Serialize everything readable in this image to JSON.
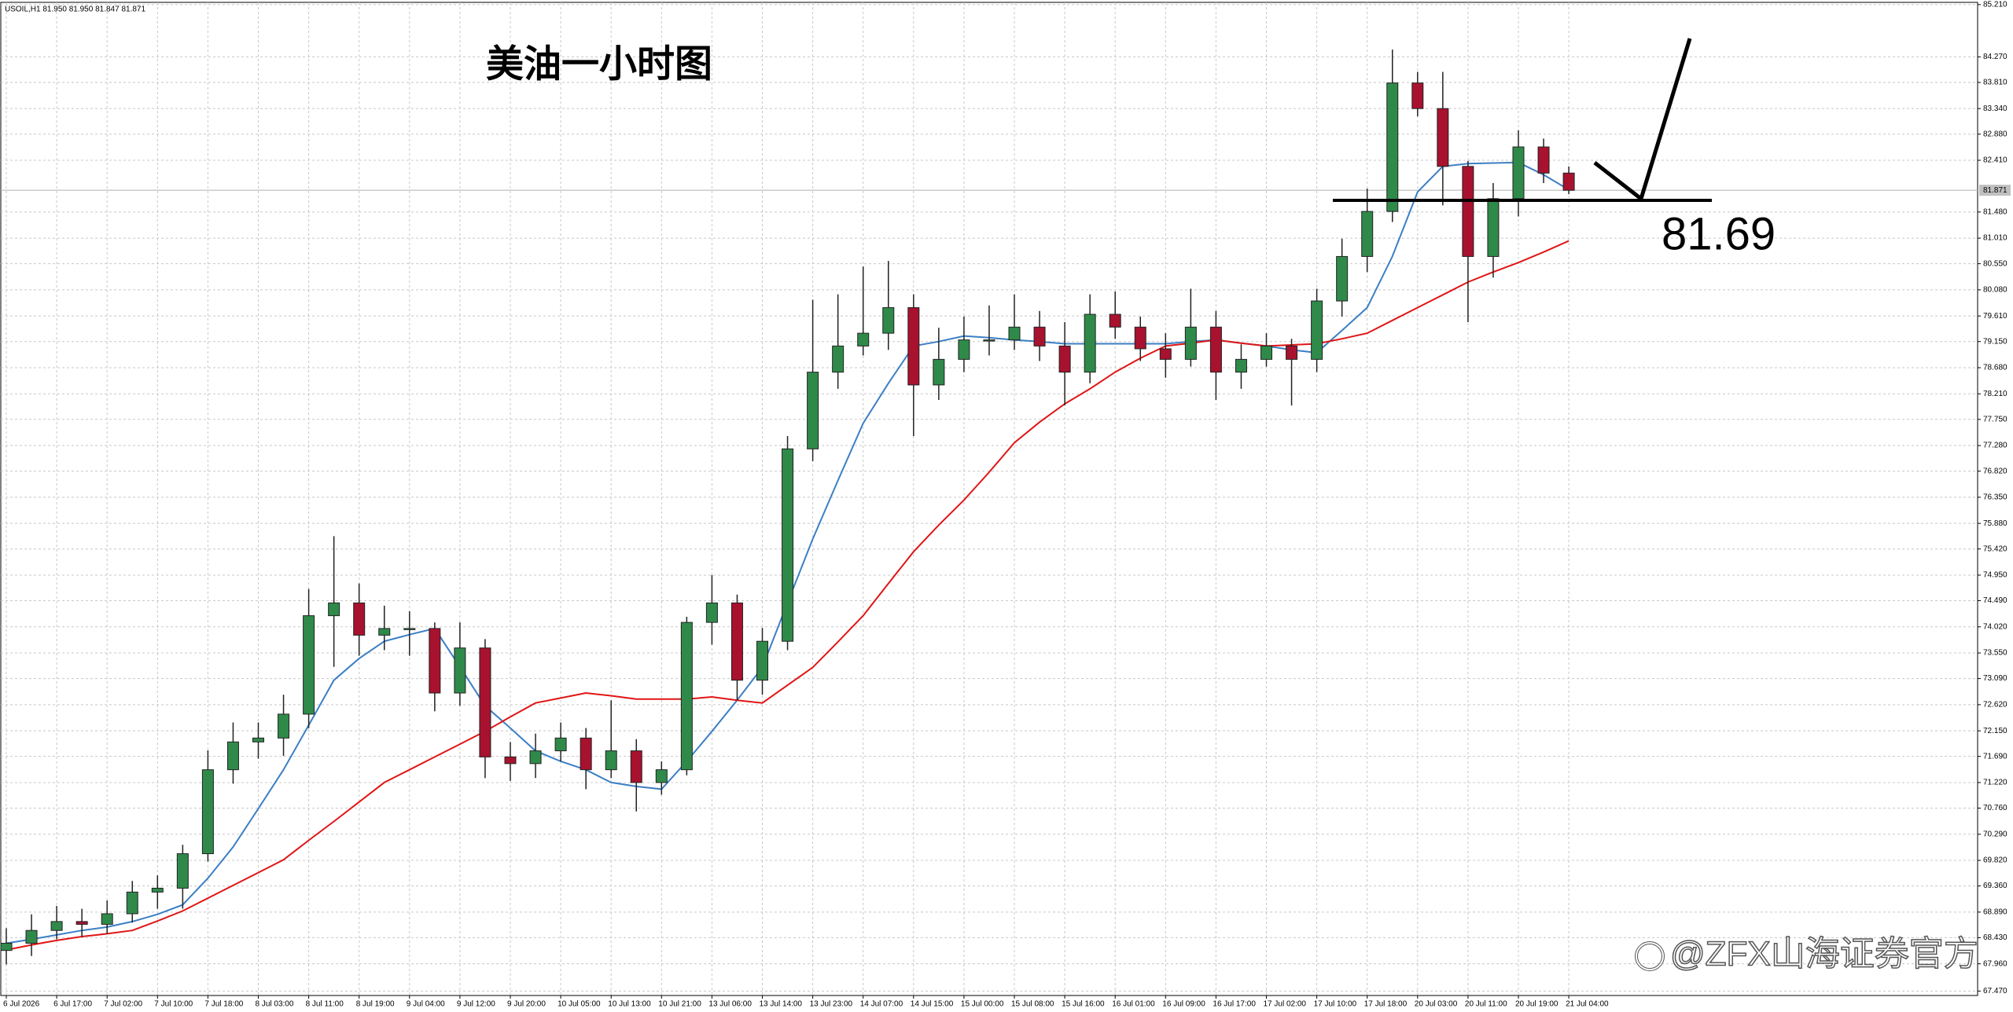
{
  "chart_data": {
    "type": "candlestick",
    "header": "USOIL,H1  81.950 81.950 81.847 81.871",
    "title": "美油一小时图",
    "level": 81.69,
    "last_price": 81.871,
    "watermark": "@ZFX山海证券官方",
    "bull_color": "#2f8a4a",
    "bear_color": "#a8122f",
    "grid": true,
    "categories": [
      "6 Jul 2026",
      null,
      "6 Jul 17:00",
      null,
      "7 Jul 02:00",
      null,
      "7 Jul 10:00",
      null,
      "7 Jul 18:00",
      null,
      "8 Jul 03:00",
      null,
      "8 Jul 11:00",
      null,
      "8 Jul 19:00",
      null,
      "9 Jul 04:00",
      null,
      "9 Jul 12:00",
      null,
      "9 Jul 20:00",
      null,
      "10 Jul 05:00",
      null,
      "10 Jul 13:00",
      null,
      "10 Jul 21:00",
      null,
      "13 Jul 06:00",
      null,
      "13 Jul 14:00",
      null,
      "13 Jul 23:00",
      null,
      "14 Jul 07:00",
      null,
      "14 Jul 15:00",
      null,
      "15 Jul 00:00",
      null,
      "15 Jul 08:00",
      null,
      "15 Jul 16:00",
      null,
      "16 Jul 01:00",
      null,
      "16 Jul 09:00",
      null,
      "16 Jul 17:00",
      null,
      "17 Jul 02:00",
      null,
      "17 Jul 10:00",
      null,
      "17 Jul 18:00",
      null,
      "20 Jul 03:00",
      null,
      "20 Jul 11:00",
      null,
      "20 Jul 19:00",
      null,
      "21 Jul 04:00"
    ],
    "ohlc": [
      [
        68.2,
        68.6,
        67.95,
        68.33
      ],
      [
        68.33,
        68.85,
        68.1,
        68.56
      ],
      [
        68.56,
        69.0,
        68.4,
        68.72
      ],
      [
        68.72,
        68.95,
        68.45,
        68.67
      ],
      [
        68.67,
        69.1,
        68.5,
        68.86
      ],
      [
        68.86,
        69.45,
        68.7,
        69.25
      ],
      [
        69.25,
        69.55,
        68.95,
        69.32
      ],
      [
        69.32,
        70.1,
        68.95,
        69.94
      ],
      [
        69.94,
        71.8,
        69.8,
        71.45
      ],
      [
        71.45,
        72.3,
        71.2,
        71.95
      ],
      [
        71.95,
        72.3,
        71.65,
        72.02
      ],
      [
        72.02,
        72.8,
        71.7,
        72.45
      ],
      [
        72.45,
        74.7,
        72.2,
        74.22
      ],
      [
        74.22,
        75.65,
        73.3,
        74.45
      ],
      [
        74.45,
        74.8,
        73.5,
        73.87
      ],
      [
        73.87,
        74.4,
        73.6,
        73.99
      ],
      [
        73.99,
        74.3,
        73.5,
        73.99
      ],
      [
        73.99,
        74.1,
        72.5,
        72.83
      ],
      [
        72.83,
        74.1,
        72.6,
        73.64
      ],
      [
        73.64,
        73.8,
        71.3,
        71.68
      ],
      [
        71.68,
        71.95,
        71.25,
        71.56
      ],
      [
        71.56,
        72.1,
        71.3,
        71.79
      ],
      [
        71.79,
        72.3,
        71.6,
        72.02
      ],
      [
        72.02,
        72.2,
        71.1,
        71.45
      ],
      [
        71.45,
        72.7,
        71.3,
        71.79
      ],
      [
        71.79,
        72.0,
        70.7,
        71.22
      ],
      [
        71.22,
        71.6,
        71.0,
        71.45
      ],
      [
        71.45,
        74.2,
        71.35,
        74.1
      ],
      [
        74.1,
        74.95,
        73.7,
        74.45
      ],
      [
        74.45,
        74.6,
        72.7,
        73.06
      ],
      [
        73.06,
        74.0,
        72.8,
        73.76
      ],
      [
        73.76,
        77.45,
        73.6,
        77.22
      ],
      [
        77.22,
        79.9,
        77.0,
        78.6
      ],
      [
        78.6,
        80.0,
        78.3,
        79.07
      ],
      [
        79.07,
        80.5,
        78.9,
        79.3
      ],
      [
        79.3,
        80.6,
        79.0,
        79.76
      ],
      [
        79.76,
        80.0,
        77.45,
        78.37
      ],
      [
        78.37,
        79.4,
        78.1,
        78.83
      ],
      [
        78.83,
        79.6,
        78.6,
        79.18
      ],
      [
        79.18,
        79.8,
        78.9,
        79.18
      ],
      [
        79.18,
        80.0,
        79.0,
        79.41
      ],
      [
        79.41,
        79.7,
        78.8,
        79.07
      ],
      [
        79.07,
        79.5,
        78.0,
        78.6
      ],
      [
        78.6,
        80.0,
        78.4,
        79.64
      ],
      [
        79.64,
        80.05,
        79.2,
        79.41
      ],
      [
        79.41,
        79.6,
        78.8,
        79.02
      ],
      [
        79.02,
        79.3,
        78.5,
        78.83
      ],
      [
        78.83,
        80.1,
        78.7,
        79.41
      ],
      [
        79.41,
        79.7,
        78.1,
        78.6
      ],
      [
        78.6,
        79.1,
        78.3,
        78.83
      ],
      [
        78.83,
        79.3,
        78.7,
        79.07
      ],
      [
        79.07,
        79.2,
        78.0,
        78.83
      ],
      [
        78.83,
        80.1,
        78.6,
        79.88
      ],
      [
        79.88,
        81.0,
        79.6,
        80.68
      ],
      [
        80.68,
        81.9,
        80.4,
        81.49
      ],
      [
        81.49,
        84.4,
        81.3,
        83.8
      ],
      [
        83.8,
        84.0,
        83.2,
        83.34
      ],
      [
        83.34,
        84.0,
        81.6,
        82.3
      ],
      [
        82.3,
        82.4,
        79.5,
        80.68
      ],
      [
        80.68,
        82.0,
        80.3,
        81.72
      ],
      [
        81.72,
        82.95,
        81.4,
        82.65
      ],
      [
        82.65,
        82.8,
        82.0,
        82.18
      ],
      [
        82.18,
        82.3,
        81.8,
        81.87
      ]
    ],
    "moving_averages": [
      {
        "color": "#3b7fc4",
        "values": [
          68.33,
          68.4,
          68.48,
          68.56,
          68.62,
          68.72,
          68.85,
          69.02,
          69.5,
          70.06,
          70.75,
          71.45,
          72.25,
          73.06,
          73.45,
          73.76,
          73.88,
          73.99,
          73.3,
          72.6,
          72.2,
          71.79,
          71.6,
          71.45,
          71.22,
          71.15,
          71.1,
          71.6,
          72.14,
          72.7,
          73.29,
          74.45,
          75.6,
          76.65,
          77.68,
          78.4,
          79.07,
          79.15,
          79.25,
          79.22,
          79.18,
          79.15,
          79.11,
          79.11,
          79.11,
          79.11,
          79.11,
          79.15,
          79.18,
          79.12,
          79.07,
          79.0,
          78.95,
          79.35,
          79.76,
          80.68,
          81.84,
          82.3,
          82.35,
          82.36,
          82.37,
          82.15,
          81.88
        ]
      },
      {
        "color": "#e01515",
        "values": [
          68.21,
          68.3,
          68.38,
          68.45,
          68.5,
          68.56,
          68.73,
          68.91,
          69.14,
          69.37,
          69.6,
          69.83,
          70.18,
          70.52,
          70.87,
          71.22,
          71.45,
          71.68,
          71.91,
          72.14,
          72.4,
          72.65,
          72.74,
          72.83,
          72.78,
          72.72,
          72.72,
          72.72,
          72.76,
          72.7,
          72.65,
          72.97,
          73.29,
          73.75,
          74.22,
          74.8,
          75.37,
          75.85,
          76.3,
          76.8,
          77.33,
          77.7,
          78.03,
          78.3,
          78.6,
          78.85,
          79.07,
          79.12,
          79.18,
          79.12,
          79.07,
          79.09,
          79.11,
          79.2,
          79.3,
          79.53,
          79.76,
          79.99,
          80.22,
          80.4,
          80.57,
          80.76,
          80.96
        ]
      }
    ],
    "ylim": [
      67.39,
      85.25
    ],
    "yticks": [
      {
        "value": 85.21,
        "label": "85.210"
      },
      {
        "value": 84.27,
        "label": "84.270"
      },
      {
        "value": 83.81,
        "label": "83.810"
      },
      {
        "value": 83.34,
        "label": "83.340"
      },
      {
        "value": 82.88,
        "label": "82.880"
      },
      {
        "value": 82.41,
        "label": "82.410"
      },
      {
        "value": 81.48,
        "label": "81.480"
      },
      {
        "value": 81.01,
        "label": "81.010"
      },
      {
        "value": 80.55,
        "label": "80.550"
      },
      {
        "value": 80.08,
        "label": "80.080"
      },
      {
        "value": 79.61,
        "label": "79.610"
      },
      {
        "value": 79.15,
        "label": "79.150"
      },
      {
        "value": 78.68,
        "label": "78.680"
      },
      {
        "value": 78.21,
        "label": "78.210"
      },
      {
        "value": 77.75,
        "label": "77.750"
      },
      {
        "value": 77.28,
        "label": "77.280"
      },
      {
        "value": 76.82,
        "label": "76.820"
      },
      {
        "value": 76.35,
        "label": "76.350"
      },
      {
        "value": 75.88,
        "label": "75.880"
      },
      {
        "value": 75.42,
        "label": "75.420"
      },
      {
        "value": 74.95,
        "label": "74.950"
      },
      {
        "value": 74.49,
        "label": "74.490"
      },
      {
        "value": 74.02,
        "label": "74.020"
      },
      {
        "value": 73.55,
        "label": "73.550"
      },
      {
        "value": 73.09,
        "label": "73.090"
      },
      {
        "value": 72.62,
        "label": "72.620"
      },
      {
        "value": 72.15,
        "label": "72.150"
      },
      {
        "value": 71.69,
        "label": "71.690"
      },
      {
        "value": 71.22,
        "label": "71.220"
      },
      {
        "value": 70.76,
        "label": "70.760"
      },
      {
        "value": 70.29,
        "label": "70.290"
      },
      {
        "value": 69.82,
        "label": "69.820"
      },
      {
        "value": 69.36,
        "label": "69.360"
      },
      {
        "value": 68.89,
        "label": "68.890"
      },
      {
        "value": 68.43,
        "label": "68.430"
      },
      {
        "value": 67.96,
        "label": "67.960"
      },
      {
        "value": 67.47,
        "label": "67.470"
      }
    ]
  }
}
